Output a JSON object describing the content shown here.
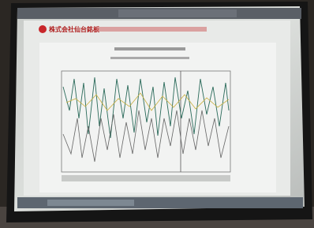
{
  "header": {
    "company": "株式会社仙台銘板"
  }
}
